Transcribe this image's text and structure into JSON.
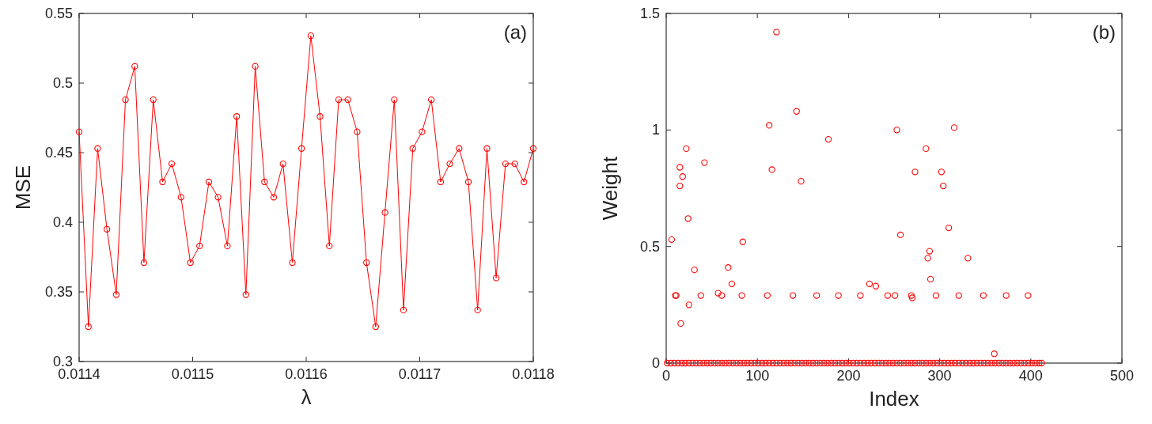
{
  "chart_data": [
    {
      "type": "line",
      "xlabel": "λ",
      "ylabel": "MSE",
      "annotations": [
        "(a)"
      ],
      "marker": "circle",
      "xlim": [
        0.0114,
        0.0118
      ],
      "xticks": [
        0.0114,
        0.0115,
        0.0116,
        0.0117,
        0.0118
      ],
      "ylim": [
        0.3,
        0.55
      ],
      "yticks": [
        0.3,
        0.35,
        0.4,
        0.45,
        0.5,
        0.55
      ],
      "x": [
        0.0114,
        0.0114082,
        0.0114163,
        0.0114245,
        0.0114327,
        0.0114408,
        0.011449,
        0.0114571,
        0.0114653,
        0.0114735,
        0.0114816,
        0.0114898,
        0.011498,
        0.0115061,
        0.0115143,
        0.0115224,
        0.0115306,
        0.0115388,
        0.0115469,
        0.0115551,
        0.0115633,
        0.0115714,
        0.0115796,
        0.0115878,
        0.0115959,
        0.0116041,
        0.0116122,
        0.0116204,
        0.0116286,
        0.0116367,
        0.0116449,
        0.0116531,
        0.0116612,
        0.0116694,
        0.0116776,
        0.0116857,
        0.0116939,
        0.011702,
        0.0117102,
        0.0117184,
        0.0117265,
        0.0117347,
        0.0117429,
        0.011751,
        0.0117592,
        0.0117673,
        0.0117755,
        0.0117837,
        0.0117918,
        0.0118
      ],
      "series": [
        {
          "color": "#ff0000",
          "values": [
            0.465,
            0.325,
            0.453,
            0.395,
            0.348,
            0.488,
            0.512,
            0.371,
            0.488,
            0.429,
            0.442,
            0.418,
            0.371,
            0.383,
            0.429,
            0.418,
            0.383,
            0.476,
            0.348,
            0.512,
            0.429,
            0.418,
            0.442,
            0.371,
            0.453,
            0.534,
            0.476,
            0.383,
            0.488,
            0.488,
            0.465,
            0.371,
            0.325,
            0.407,
            0.488,
            0.337,
            0.453,
            0.465,
            0.488,
            0.429,
            0.442,
            0.453,
            0.429,
            0.337,
            0.453,
            0.36,
            0.442,
            0.442,
            0.429,
            0.453
          ]
        }
      ]
    },
    {
      "type": "scatter",
      "xlabel": "Index",
      "ylabel": "Weight",
      "annotations": [
        "(b)"
      ],
      "marker": "circle",
      "xlim": [
        0,
        500
      ],
      "xticks": [
        0,
        100,
        200,
        300,
        400,
        500
      ],
      "ylim": [
        0,
        1.5
      ],
      "yticks": [
        0,
        0.5,
        1,
        1.5
      ],
      "series": [
        {
          "color": "#ff0000",
          "x": [
            1,
            5,
            9,
            13,
            17,
            21,
            25,
            29,
            33,
            37,
            41,
            45,
            49,
            53,
            57,
            61,
            65,
            69,
            73,
            77,
            81,
            85,
            89,
            93,
            97,
            101,
            105,
            109,
            113,
            117,
            121,
            125,
            129,
            133,
            137,
            141,
            145,
            149,
            153,
            157,
            161,
            165,
            169,
            173,
            177,
            181,
            185,
            189,
            193,
            197,
            201,
            205,
            209,
            213,
            217,
            221,
            225,
            229,
            233,
            237,
            241,
            245,
            249,
            253,
            257,
            261,
            265,
            269,
            273,
            277,
            281,
            285,
            289,
            293,
            297,
            301,
            305,
            309,
            313,
            317,
            321,
            325,
            329,
            333,
            337,
            341,
            345,
            349,
            353,
            357,
            361,
            365,
            369,
            373,
            377,
            381,
            385,
            389,
            393,
            397,
            401,
            405,
            409,
            412
          ],
          "values": [
            0,
            0,
            0,
            0,
            0,
            0,
            0,
            0,
            0,
            0,
            0,
            0,
            0,
            0,
            0,
            0,
            0,
            0,
            0,
            0,
            0,
            0,
            0,
            0,
            0,
            0,
            0,
            0,
            0,
            0,
            0,
            0,
            0,
            0,
            0,
            0,
            0,
            0,
            0,
            0,
            0,
            0,
            0,
            0,
            0,
            0,
            0,
            0,
            0,
            0,
            0,
            0,
            0,
            0,
            0,
            0,
            0,
            0,
            0,
            0,
            0,
            0,
            0,
            0,
            0,
            0,
            0,
            0,
            0,
            0,
            0,
            0,
            0,
            0,
            0,
            0,
            0,
            0,
            0,
            0,
            0,
            0,
            0,
            0,
            0,
            0,
            0,
            0,
            0,
            0,
            0,
            0,
            0,
            0,
            0,
            0,
            0,
            0,
            0,
            0,
            0,
            0,
            0,
            0
          ]
        },
        {
          "color": "#ff0000",
          "x": [
            6,
            10,
            11,
            15,
            15,
            18,
            22,
            16,
            24,
            25,
            31,
            38,
            42,
            57,
            61,
            68,
            72,
            83,
            84,
            111,
            113,
            116,
            121,
            139,
            143,
            148,
            165,
            178,
            189,
            213,
            223,
            230,
            243,
            251,
            253,
            257,
            269,
            270,
            273,
            285,
            287,
            289,
            290,
            296,
            302,
            304,
            310,
            316,
            321,
            331,
            348,
            360,
            373,
            397
          ],
          "values": [
            0.53,
            0.29,
            0.29,
            0.84,
            0.76,
            0.8,
            0.92,
            0.17,
            0.62,
            0.25,
            0.4,
            0.29,
            0.86,
            0.3,
            0.29,
            0.41,
            0.34,
            0.29,
            0.52,
            0.29,
            1.02,
            0.83,
            1.42,
            0.29,
            1.08,
            0.78,
            0.29,
            0.96,
            0.29,
            0.29,
            0.34,
            0.33,
            0.29,
            0.29,
            1.0,
            0.55,
            0.29,
            0.28,
            0.82,
            0.92,
            0.45,
            0.48,
            0.36,
            0.29,
            0.82,
            0.76,
            0.58,
            1.01,
            0.29,
            0.45,
            0.29,
            0.04,
            0.29,
            0.29
          ]
        }
      ]
    }
  ]
}
